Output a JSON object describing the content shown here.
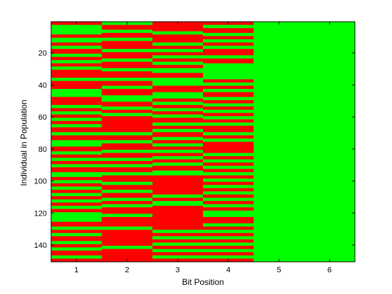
{
  "chart_data": {
    "type": "heatmap",
    "title": "",
    "xlabel": "Bit Position",
    "ylabel": "Individual in Population",
    "x_categories": [
      "1",
      "2",
      "3",
      "4",
      "5",
      "6"
    ],
    "rows": 150,
    "yticks": [
      20,
      40,
      60,
      80,
      100,
      120,
      140
    ],
    "ylim": [
      1,
      150
    ],
    "y_direction": "reverse",
    "colors": {
      "zero": "#00ff00",
      "one": "#ff0000",
      "axes": "#000000",
      "background": "#ffffff"
    },
    "value_legend": {
      "0": "green",
      "1": "red"
    },
    "columns": [
      {
        "bit": 1,
        "runs": [
          [
            1,
            2,
            1
          ],
          [
            3,
            8,
            0
          ],
          [
            9,
            10,
            1
          ],
          [
            11,
            13,
            0
          ],
          [
            14,
            15,
            1
          ],
          [
            16,
            17,
            0
          ],
          [
            18,
            20,
            1
          ],
          [
            21,
            22,
            0
          ],
          [
            23,
            24,
            1
          ],
          [
            25,
            26,
            0
          ],
          [
            27,
            28,
            1
          ],
          [
            29,
            30,
            0
          ],
          [
            31,
            35,
            1
          ],
          [
            36,
            37,
            0
          ],
          [
            38,
            42,
            1
          ],
          [
            43,
            47,
            0
          ],
          [
            48,
            52,
            1
          ],
          [
            53,
            54,
            0
          ],
          [
            55,
            56,
            1
          ],
          [
            57,
            58,
            0
          ],
          [
            59,
            60,
            1
          ],
          [
            61,
            62,
            0
          ],
          [
            63,
            64,
            1
          ],
          [
            65,
            66,
            0
          ],
          [
            67,
            69,
            1
          ],
          [
            70,
            71,
            0
          ],
          [
            72,
            74,
            1
          ],
          [
            75,
            78,
            0
          ],
          [
            79,
            81,
            1
          ],
          [
            82,
            83,
            0
          ],
          [
            84,
            85,
            1
          ],
          [
            86,
            87,
            0
          ],
          [
            88,
            89,
            1
          ],
          [
            90,
            91,
            0
          ],
          [
            92,
            94,
            1
          ],
          [
            95,
            97,
            0
          ],
          [
            98,
            99,
            1
          ],
          [
            100,
            101,
            0
          ],
          [
            102,
            103,
            1
          ],
          [
            104,
            105,
            0
          ],
          [
            106,
            107,
            1
          ],
          [
            108,
            109,
            0
          ],
          [
            110,
            111,
            1
          ],
          [
            112,
            113,
            0
          ],
          [
            114,
            115,
            1
          ],
          [
            116,
            117,
            0
          ],
          [
            118,
            119,
            1
          ],
          [
            120,
            125,
            0
          ],
          [
            126,
            128,
            1
          ],
          [
            129,
            130,
            0
          ],
          [
            131,
            132,
            1
          ],
          [
            133,
            134,
            0
          ],
          [
            135,
            137,
            1
          ],
          [
            138,
            139,
            0
          ],
          [
            140,
            141,
            1
          ],
          [
            142,
            143,
            0
          ],
          [
            144,
            146,
            1
          ],
          [
            147,
            148,
            0
          ],
          [
            149,
            150,
            1
          ]
        ]
      },
      {
        "bit": 2,
        "runs": [
          [
            1,
            2,
            0
          ],
          [
            3,
            5,
            1
          ],
          [
            6,
            7,
            0
          ],
          [
            8,
            10,
            1
          ],
          [
            11,
            12,
            0
          ],
          [
            13,
            17,
            1
          ],
          [
            18,
            19,
            0
          ],
          [
            20,
            23,
            1
          ],
          [
            24,
            25,
            0
          ],
          [
            26,
            29,
            1
          ],
          [
            30,
            31,
            0
          ],
          [
            32,
            35,
            1
          ],
          [
            36,
            37,
            0
          ],
          [
            38,
            40,
            1
          ],
          [
            41,
            42,
            0
          ],
          [
            43,
            46,
            1
          ],
          [
            47,
            50,
            0
          ],
          [
            51,
            53,
            1
          ],
          [
            54,
            55,
            0
          ],
          [
            56,
            57,
            1
          ],
          [
            58,
            59,
            0
          ],
          [
            60,
            69,
            1
          ],
          [
            70,
            71,
            0
          ],
          [
            72,
            74,
            1
          ],
          [
            75,
            76,
            0
          ],
          [
            77,
            80,
            1
          ],
          [
            81,
            82,
            0
          ],
          [
            83,
            85,
            1
          ],
          [
            86,
            87,
            0
          ],
          [
            88,
            89,
            1
          ],
          [
            90,
            91,
            0
          ],
          [
            92,
            94,
            1
          ],
          [
            95,
            96,
            0
          ],
          [
            97,
            100,
            1
          ],
          [
            101,
            102,
            0
          ],
          [
            103,
            105,
            1
          ],
          [
            106,
            107,
            0
          ],
          [
            108,
            110,
            1
          ],
          [
            111,
            112,
            0
          ],
          [
            113,
            114,
            1
          ],
          [
            115,
            116,
            0
          ],
          [
            117,
            120,
            1
          ],
          [
            121,
            122,
            0
          ],
          [
            123,
            128,
            1
          ],
          [
            129,
            130,
            0
          ],
          [
            131,
            140,
            1
          ],
          [
            141,
            142,
            0
          ],
          [
            143,
            150,
            1
          ]
        ]
      },
      {
        "bit": 3,
        "runs": [
          [
            1,
            6,
            1
          ],
          [
            7,
            8,
            0
          ],
          [
            9,
            13,
            1
          ],
          [
            14,
            15,
            0
          ],
          [
            16,
            17,
            1
          ],
          [
            18,
            19,
            0
          ],
          [
            20,
            21,
            1
          ],
          [
            22,
            23,
            0
          ],
          [
            24,
            25,
            1
          ],
          [
            26,
            27,
            0
          ],
          [
            28,
            29,
            1
          ],
          [
            30,
            32,
            0
          ],
          [
            33,
            35,
            1
          ],
          [
            36,
            40,
            0
          ],
          [
            41,
            44,
            1
          ],
          [
            45,
            48,
            0
          ],
          [
            49,
            50,
            1
          ],
          [
            51,
            52,
            0
          ],
          [
            53,
            54,
            1
          ],
          [
            55,
            56,
            0
          ],
          [
            57,
            58,
            1
          ],
          [
            59,
            60,
            0
          ],
          [
            61,
            63,
            1
          ],
          [
            64,
            65,
            0
          ],
          [
            66,
            67,
            1
          ],
          [
            68,
            69,
            0
          ],
          [
            70,
            72,
            1
          ],
          [
            73,
            74,
            0
          ],
          [
            75,
            76,
            1
          ],
          [
            77,
            78,
            0
          ],
          [
            79,
            80,
            1
          ],
          [
            81,
            82,
            0
          ],
          [
            83,
            84,
            1
          ],
          [
            85,
            86,
            0
          ],
          [
            87,
            88,
            1
          ],
          [
            89,
            90,
            0
          ],
          [
            91,
            93,
            1
          ],
          [
            94,
            96,
            0
          ],
          [
            97,
            108,
            1
          ],
          [
            109,
            110,
            0
          ],
          [
            111,
            112,
            1
          ],
          [
            113,
            115,
            0
          ],
          [
            116,
            130,
            1
          ],
          [
            131,
            132,
            0
          ],
          [
            133,
            134,
            1
          ],
          [
            135,
            136,
            0
          ],
          [
            137,
            138,
            1
          ],
          [
            139,
            140,
            0
          ],
          [
            141,
            142,
            1
          ],
          [
            143,
            144,
            0
          ],
          [
            145,
            146,
            1
          ],
          [
            147,
            148,
            0
          ],
          [
            149,
            150,
            1
          ]
        ]
      },
      {
        "bit": 4,
        "runs": [
          [
            1,
            2,
            1
          ],
          [
            3,
            4,
            0
          ],
          [
            5,
            7,
            1
          ],
          [
            8,
            9,
            0
          ],
          [
            10,
            11,
            1
          ],
          [
            12,
            13,
            0
          ],
          [
            14,
            15,
            1
          ],
          [
            16,
            17,
            0
          ],
          [
            18,
            21,
            1
          ],
          [
            22,
            23,
            0
          ],
          [
            24,
            26,
            1
          ],
          [
            27,
            36,
            0
          ],
          [
            37,
            38,
            1
          ],
          [
            39,
            40,
            0
          ],
          [
            41,
            42,
            1
          ],
          [
            43,
            44,
            0
          ],
          [
            45,
            47,
            1
          ],
          [
            48,
            49,
            0
          ],
          [
            50,
            51,
            1
          ],
          [
            52,
            53,
            0
          ],
          [
            54,
            55,
            1
          ],
          [
            56,
            57,
            0
          ],
          [
            58,
            59,
            1
          ],
          [
            60,
            61,
            0
          ],
          [
            62,
            63,
            1
          ],
          [
            64,
            65,
            0
          ],
          [
            66,
            69,
            1
          ],
          [
            70,
            71,
            0
          ],
          [
            72,
            73,
            1
          ],
          [
            74,
            75,
            0
          ],
          [
            76,
            82,
            1
          ],
          [
            83,
            84,
            0
          ],
          [
            85,
            86,
            1
          ],
          [
            87,
            88,
            0
          ],
          [
            89,
            90,
            1
          ],
          [
            91,
            92,
            0
          ],
          [
            93,
            94,
            1
          ],
          [
            95,
            96,
            0
          ],
          [
            97,
            98,
            1
          ],
          [
            99,
            100,
            0
          ],
          [
            101,
            102,
            1
          ],
          [
            103,
            104,
            0
          ],
          [
            105,
            106,
            1
          ],
          [
            107,
            108,
            0
          ],
          [
            109,
            110,
            1
          ],
          [
            111,
            112,
            0
          ],
          [
            113,
            114,
            1
          ],
          [
            115,
            116,
            0
          ],
          [
            117,
            118,
            1
          ],
          [
            119,
            122,
            0
          ],
          [
            123,
            126,
            1
          ],
          [
            127,
            128,
            0
          ],
          [
            129,
            130,
            1
          ],
          [
            131,
            132,
            0
          ],
          [
            133,
            134,
            1
          ],
          [
            135,
            136,
            0
          ],
          [
            137,
            138,
            1
          ],
          [
            139,
            140,
            0
          ],
          [
            141,
            142,
            1
          ],
          [
            143,
            144,
            0
          ],
          [
            145,
            146,
            1
          ],
          [
            147,
            148,
            0
          ],
          [
            149,
            150,
            1
          ]
        ]
      },
      {
        "bit": 5,
        "runs": [
          [
            1,
            150,
            0
          ]
        ]
      },
      {
        "bit": 6,
        "runs": [
          [
            1,
            150,
            0
          ]
        ]
      }
    ]
  }
}
